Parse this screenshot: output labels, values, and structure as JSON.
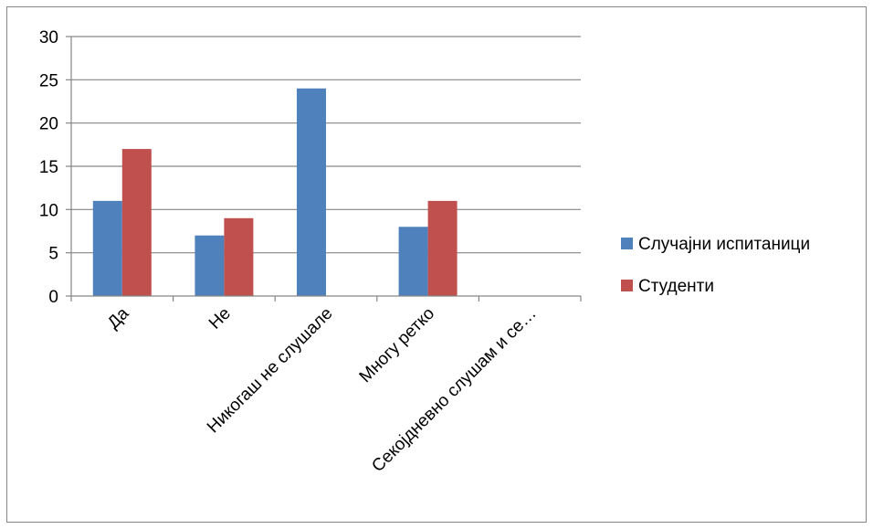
{
  "chart_data": {
    "type": "bar",
    "categories": [
      "Да",
      "Не",
      "Никогаш не слушале",
      "Многу ретко",
      "Секојдневно слушам и се…"
    ],
    "series": [
      {
        "name": "Случајни испитаници",
        "values": [
          11,
          7,
          24,
          8,
          0
        ],
        "color": "#4F81BD"
      },
      {
        "name": "Студенти",
        "values": [
          17,
          9,
          0,
          11,
          0
        ],
        "color": "#C0504D"
      }
    ],
    "ylim": [
      0,
      30
    ],
    "yticks": [
      0,
      5,
      10,
      15,
      20,
      25,
      30
    ],
    "grid": true,
    "legend_position": "right",
    "title": "",
    "xlabel": "",
    "ylabel": ""
  }
}
